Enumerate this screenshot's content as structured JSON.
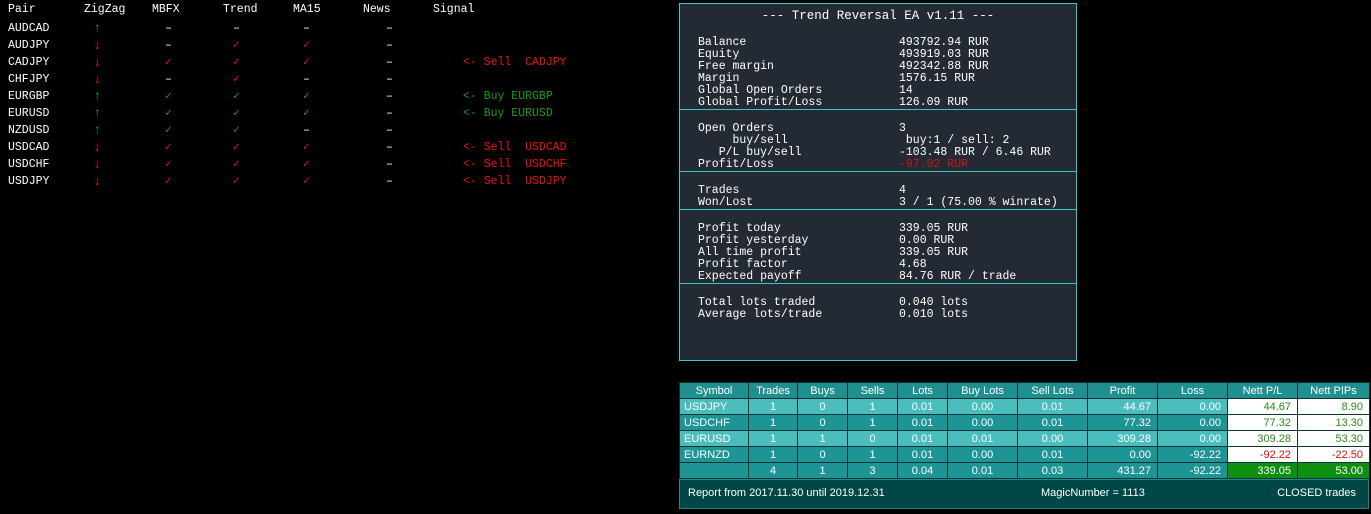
{
  "signals_table": {
    "headers": [
      "Pair",
      "ZigZag",
      "MBFX",
      "Trend",
      "MA15",
      "News",
      "Signal"
    ],
    "rows": [
      {
        "cells": [
          "AUDCAD",
          {
            "text": "↑",
            "color": "#1f9a1f"
          },
          "–",
          "–",
          "–",
          "–",
          null
        ]
      },
      {
        "cells": [
          "AUDJPY",
          {
            "text": "↓",
            "color": "#ee1111"
          },
          "–",
          {
            "text": "✓",
            "color": "#ee1111"
          },
          {
            "text": "✓",
            "color": "#ee1111"
          },
          "–",
          null
        ]
      },
      {
        "cells": [
          "CADJPY",
          {
            "text": "↓",
            "color": "#ee1111"
          },
          {
            "text": "✓",
            "color": "#ee1111"
          },
          {
            "text": "✓",
            "color": "#ee1111"
          },
          {
            "text": "✓",
            "color": "#ee1111"
          },
          "–",
          {
            "text": "<- Sell  CADJPY",
            "color": "#ee1111"
          }
        ]
      },
      {
        "cells": [
          "CHFJPY",
          {
            "text": "↓",
            "color": "#ee1111"
          },
          "–",
          {
            "text": "✓",
            "color": "#ee1111"
          },
          "–",
          "–",
          null
        ]
      },
      {
        "cells": [
          "EURGBP",
          {
            "text": "↑",
            "color": "#1f9a1f"
          },
          {
            "text": "✓",
            "color": "#1f9a1f"
          },
          {
            "text": "✓",
            "color": "#1f9a1f"
          },
          {
            "text": "✓",
            "color": "#1f9a1f"
          },
          "–",
          {
            "text": "<- Buy EURGBP",
            "color": "#1f9a1f"
          }
        ]
      },
      {
        "cells": [
          "EURUSD",
          {
            "text": "↑",
            "color": "#1f9a1f"
          },
          {
            "text": "✓",
            "color": "#1f9a1f"
          },
          {
            "text": "✓",
            "color": "#1f9a1f"
          },
          {
            "text": "✓",
            "color": "#1f9a1f"
          },
          "–",
          {
            "text": "<- Buy EURUSD",
            "color": "#1f9a1f"
          }
        ]
      },
      {
        "cells": [
          "NZDUSD",
          {
            "text": "↑",
            "color": "#1f9a1f"
          },
          {
            "text": "✓",
            "color": "#1f9a1f"
          },
          {
            "text": "✓",
            "color": "#1f9a1f"
          },
          "–",
          "–",
          null
        ]
      },
      {
        "cells": [
          "USDCAD",
          {
            "text": "↓",
            "color": "#ee1111"
          },
          {
            "text": "✓",
            "color": "#ee1111"
          },
          {
            "text": "✓",
            "color": "#ee1111"
          },
          {
            "text": "✓",
            "color": "#ee1111"
          },
          "–",
          {
            "text": "<- Sell  USDCAD",
            "color": "#ee1111"
          }
        ]
      },
      {
        "cells": [
          "USDCHF",
          {
            "text": "↓",
            "color": "#ee1111"
          },
          {
            "text": "✓",
            "color": "#ee1111"
          },
          {
            "text": "✓",
            "color": "#ee1111"
          },
          {
            "text": "✓",
            "color": "#ee1111"
          },
          "–",
          {
            "text": "<- Sell  USDCHF",
            "color": "#ee1111"
          }
        ]
      },
      {
        "cells": [
          "USDJPY",
          {
            "text": "↓",
            "color": "#ee1111"
          },
          {
            "text": "✓",
            "color": "#ee1111"
          },
          {
            "text": "✓",
            "color": "#ee1111"
          },
          {
            "text": "✓",
            "color": "#ee1111"
          },
          "–",
          {
            "text": "<- Sell  USDJPY",
            "color": "#ee1111"
          }
        ]
      }
    ]
  },
  "ea_panel": {
    "title": "--- Trend Reversal EA v1.11 ---",
    "sections": [
      [
        {
          "label": "Balance",
          "value": "493792.94 RUR"
        },
        {
          "label": "Equity",
          "value": "493919.03 RUR"
        },
        {
          "label": "Free margin",
          "value": "492342.88 RUR"
        },
        {
          "label": "Margin",
          "value": "1576.15 RUR"
        },
        {
          "label": "Global Open Orders",
          "value": "14"
        },
        {
          "label": "Global Profit/Loss",
          "value": "126.09 RUR"
        }
      ],
      [
        {
          "label": "Open Orders",
          "value": "3"
        },
        {
          "label": "     buy/sell",
          "value": " buy:1 / sell: 2"
        },
        {
          "label": "   P/L buy/sell",
          "value": "-103.48 RUR / 6.46 RUR"
        },
        {
          "label": "Profit/Loss",
          "value": "-97.02 RUR",
          "color": "#c81818"
        }
      ],
      [
        {
          "label": "Trades",
          "value": "4"
        },
        {
          "label": "Won/Lost",
          "value": "3 / 1 (75.00 % winrate)"
        }
      ],
      [
        {
          "label": "Profit today",
          "value": "339.05 RUR"
        },
        {
          "label": "Profit yesterday",
          "value": "0.00 RUR"
        },
        {
          "label": "All time profit",
          "value": "339.05 RUR"
        },
        {
          "label": "Profit factor",
          "value": "4.68"
        },
        {
          "label": "Expected payoff",
          "value": "84.76 RUR / trade"
        }
      ],
      [
        {
          "label": "Total lots traded",
          "value": "0.040 lots"
        },
        {
          "label": "Average lots/trade",
          "value": "0.010 lots"
        }
      ]
    ]
  },
  "report": {
    "headers": [
      "Symbol",
      "Trades",
      "Buys",
      "Sells",
      "Lots",
      "Buy Lots",
      "Sell Lots",
      "Profit",
      "Loss",
      "Nett P/L",
      "Nett PIPs"
    ],
    "rows": [
      [
        "USDJPY",
        "1",
        "0",
        "1",
        "0.01",
        "0.00",
        "0.01",
        "44.67",
        "0.00",
        "44.67",
        "8.90"
      ],
      [
        "USDCHF",
        "1",
        "0",
        "1",
        "0.01",
        "0.00",
        "0.01",
        "77.32",
        "0.00",
        "77.32",
        "13.30"
      ],
      [
        "EURUSD",
        "1",
        "1",
        "0",
        "0.01",
        "0.01",
        "0.00",
        "309.28",
        "0.00",
        "309.28",
        "53.30"
      ],
      [
        "EURNZD",
        "1",
        "0",
        "1",
        "0.01",
        "0.00",
        "0.01",
        "0.00",
        "-92.22",
        "-92.22",
        "-22.50"
      ]
    ],
    "total": [
      null,
      "4",
      "1",
      "3",
      "0.04",
      "0.01",
      "0.03",
      "431.27",
      "-92.22",
      "339.05",
      "53.00"
    ],
    "footer": {
      "period": "Report from 2017.11.30 until 2019.12.31",
      "magic": "MagicNumber = 1113",
      "mode": "CLOSED trades"
    }
  }
}
